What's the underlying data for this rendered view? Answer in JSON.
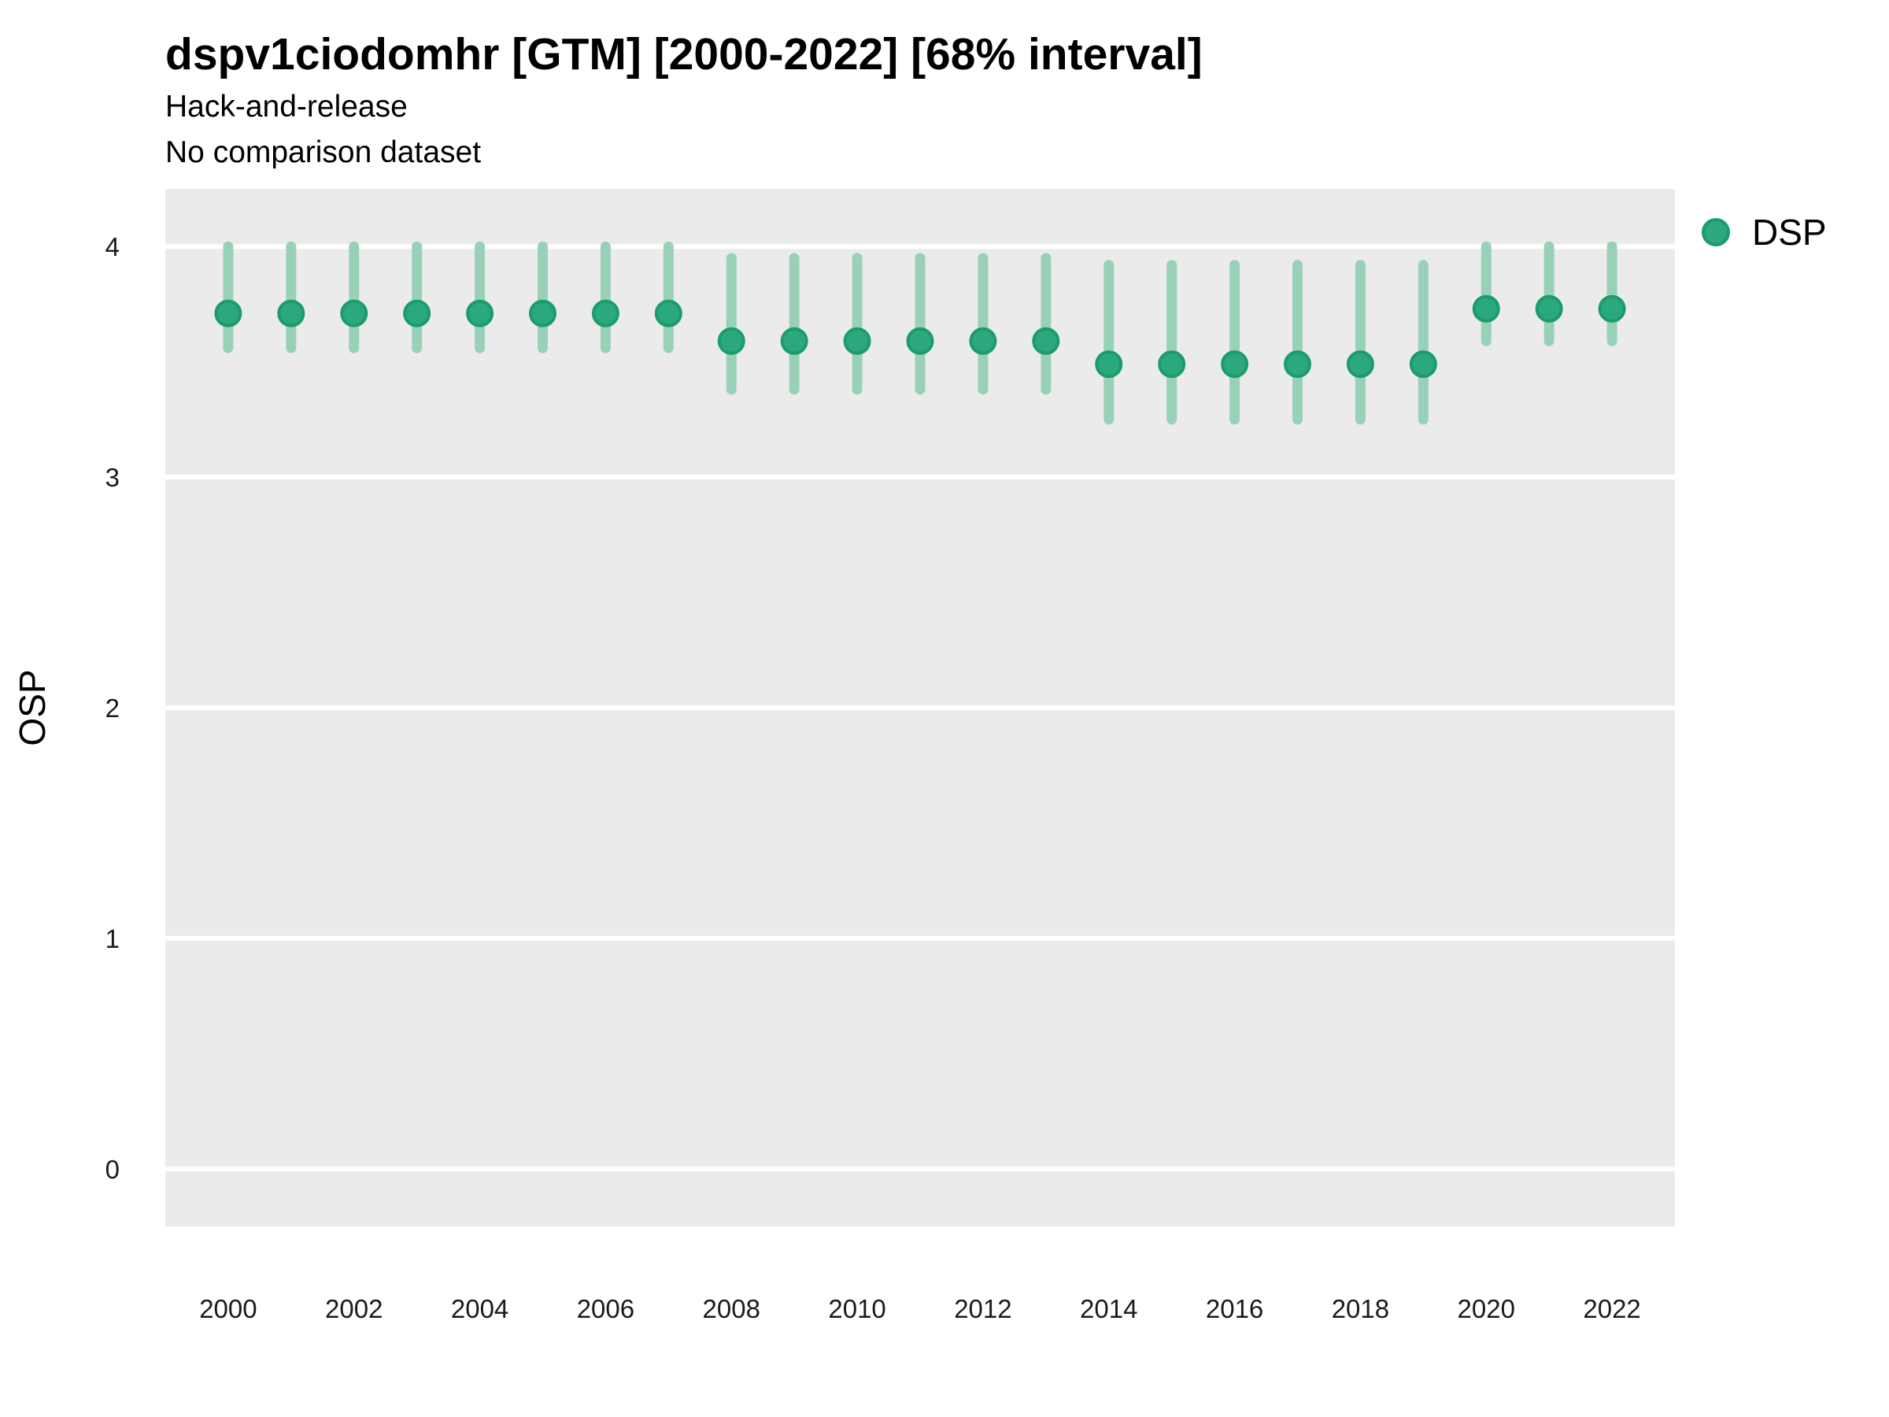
{
  "header": {
    "title": "dspv1ciodomhr [GTM] [2000-2022] [68% interval]",
    "subtitle1": "Hack-and-release",
    "subtitle2": "No comparison dataset"
  },
  "legend": {
    "label": "DSP"
  },
  "chart_data": {
    "type": "scatter",
    "title": "dspv1ciodomhr [GTM] [2000-2022] [68% interval]",
    "subtitle": [
      "Hack-and-release",
      "No comparison dataset"
    ],
    "xlabel": "",
    "ylabel": "OSP",
    "interval_label": "68% interval",
    "xlim": [
      1999,
      2023
    ],
    "ylim": [
      -0.25,
      4.25
    ],
    "x_ticks": [
      2000,
      2002,
      2004,
      2006,
      2008,
      2010,
      2012,
      2014,
      2016,
      2018,
      2020,
      2022
    ],
    "y_ticks": [
      0,
      1,
      2,
      3,
      4
    ],
    "grid": "horizontal-major-only",
    "legend_position": "right",
    "series": [
      {
        "name": "DSP",
        "x": [
          2000,
          2001,
          2002,
          2003,
          2004,
          2005,
          2006,
          2007,
          2008,
          2009,
          2010,
          2011,
          2012,
          2013,
          2014,
          2015,
          2016,
          2017,
          2018,
          2019,
          2020,
          2021,
          2022
        ],
        "y": [
          3.71,
          3.71,
          3.71,
          3.71,
          3.71,
          3.71,
          3.71,
          3.71,
          3.59,
          3.59,
          3.59,
          3.59,
          3.59,
          3.59,
          3.49,
          3.49,
          3.49,
          3.49,
          3.49,
          3.49,
          3.73,
          3.73,
          3.73
        ],
        "y_low": [
          3.56,
          3.56,
          3.56,
          3.56,
          3.56,
          3.56,
          3.56,
          3.56,
          3.38,
          3.38,
          3.38,
          3.38,
          3.38,
          3.38,
          3.25,
          3.25,
          3.25,
          3.25,
          3.25,
          3.25,
          3.59,
          3.59,
          3.59
        ],
        "y_high": [
          4.0,
          4.0,
          4.0,
          4.0,
          4.0,
          4.0,
          4.0,
          4.0,
          3.95,
          3.95,
          3.95,
          3.95,
          3.95,
          3.95,
          3.92,
          3.92,
          3.92,
          3.92,
          3.92,
          3.92,
          4.0,
          4.0,
          4.0
        ]
      }
    ],
    "colors": {
      "point_fill": "#2ba87d",
      "point_stroke": "#1a9c6b",
      "interval_line": "#99d1b8",
      "panel_bg": "#ebebeb",
      "grid_line": "#ffffff",
      "title_text": "#000000",
      "tick_text": "#1a1a1a"
    }
  }
}
